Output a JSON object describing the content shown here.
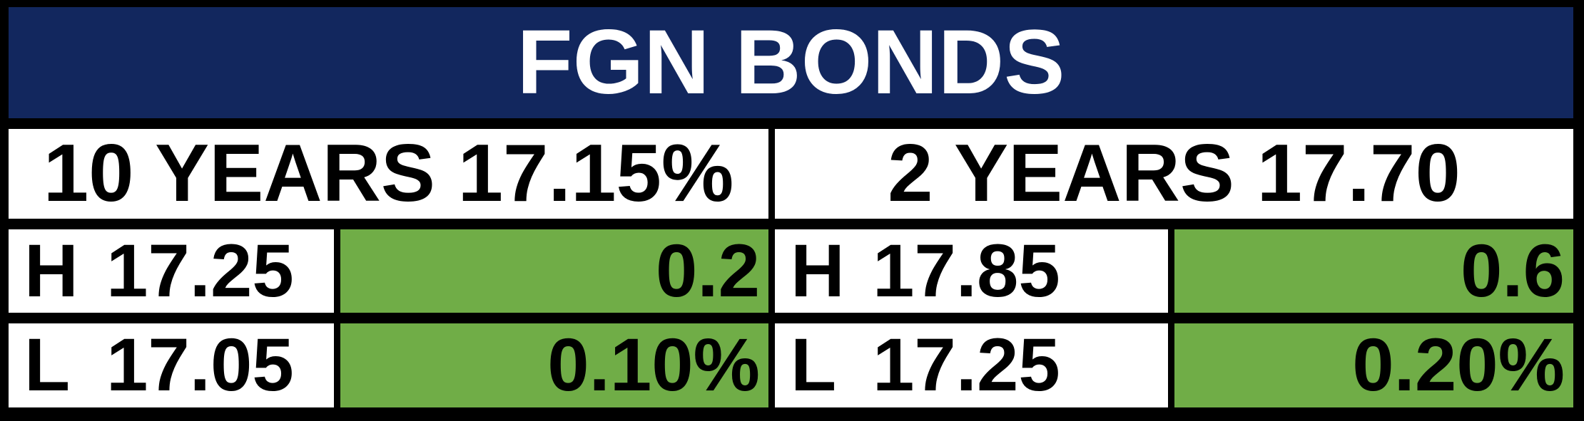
{
  "table": {
    "title": "FGN BONDS"
  },
  "colors": {
    "navy": "#12275E",
    "green": "#70AD47",
    "black": "#000000",
    "white": "#FFFFFF"
  },
  "bonds": [
    {
      "name": "10 YEARS 17.15%",
      "high": {
        "label": "H",
        "value": "17.25",
        "change": "0.2"
      },
      "low": {
        "label": "L",
        "value": "17.05",
        "change": "0.10%"
      }
    },
    {
      "name": "2 YEARS 17.70",
      "high": {
        "label": "H",
        "value": "17.85",
        "change": "0.6"
      },
      "low": {
        "label": "L",
        "value": "17.25",
        "change": "0.20%"
      }
    }
  ]
}
